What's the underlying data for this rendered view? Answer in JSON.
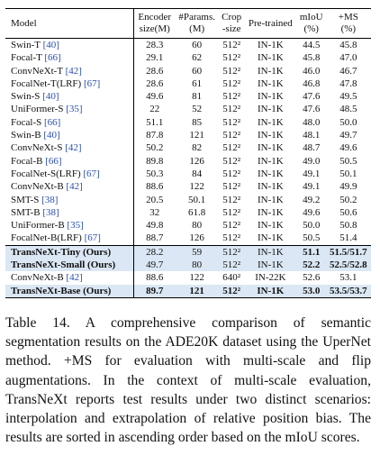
{
  "table": {
    "header": [
      [
        "Model"
      ],
      [
        "Encoder",
        "size(M)"
      ],
      [
        "#Params.",
        "(M)"
      ],
      [
        "Crop",
        "-size"
      ],
      [
        "Pre-trained"
      ],
      [
        "mIoU",
        "(%)"
      ],
      [
        "+MS",
        "(%)"
      ]
    ],
    "rows": [
      {
        "model": "Swin-T",
        "ref": "[40]",
        "cells": [
          "28.3",
          "60",
          "512²",
          "IN-1K",
          "44.5",
          "45.8"
        ]
      },
      {
        "model": "Focal-T",
        "ref": "[66]",
        "cells": [
          "29.1",
          "62",
          "512²",
          "IN-1K",
          "45.8",
          "47.0"
        ]
      },
      {
        "model": "ConvNeXt-T",
        "ref": "[42]",
        "cells": [
          "28.6",
          "60",
          "512²",
          "IN-1K",
          "46.0",
          "46.7"
        ]
      },
      {
        "model": "FocalNet-T(LRF)",
        "ref": "[67]",
        "cells": [
          "28.6",
          "61",
          "512²",
          "IN-1K",
          "46.8",
          "47.8"
        ]
      },
      {
        "model": "Swin-S",
        "ref": "[40]",
        "cells": [
          "49.6",
          "81",
          "512²",
          "IN-1K",
          "47.6",
          "49.5"
        ]
      },
      {
        "model": "UniFormer-S",
        "ref": "[35]",
        "cells": [
          "22",
          "52",
          "512²",
          "IN-1K",
          "47.6",
          "48.5"
        ]
      },
      {
        "model": "Focal-S",
        "ref": "[66]",
        "cells": [
          "51.1",
          "85",
          "512²",
          "IN-1K",
          "48.0",
          "50.0"
        ]
      },
      {
        "model": "Swin-B",
        "ref": "[40]",
        "cells": [
          "87.8",
          "121",
          "512²",
          "IN-1K",
          "48.1",
          "49.7"
        ]
      },
      {
        "model": "ConvNeXt-S",
        "ref": "[42]",
        "cells": [
          "50.2",
          "82",
          "512²",
          "IN-1K",
          "48.7",
          "49.6"
        ]
      },
      {
        "model": "Focal-B",
        "ref": "[66]",
        "cells": [
          "89.8",
          "126",
          "512²",
          "IN-1K",
          "49.0",
          "50.5"
        ]
      },
      {
        "model": "FocalNet-S(LRF)",
        "ref": "[67]",
        "cells": [
          "50.3",
          "84",
          "512²",
          "IN-1K",
          "49.1",
          "50.1"
        ]
      },
      {
        "model": "ConvNeXt-B",
        "ref": "[42]",
        "cells": [
          "88.6",
          "122",
          "512²",
          "IN-1K",
          "49.1",
          "49.9"
        ]
      },
      {
        "model": "SMT-S",
        "ref": "[38]",
        "cells": [
          "20.5",
          "50.1",
          "512²",
          "IN-1K",
          "49.2",
          "50.2"
        ]
      },
      {
        "model": "SMT-B",
        "ref": "[38]",
        "cells": [
          "32",
          "61.8",
          "512²",
          "IN-1K",
          "49.6",
          "50.6"
        ]
      },
      {
        "model": "UniFormer-B",
        "ref": "[35]",
        "cells": [
          "49.8",
          "80",
          "512²",
          "IN-1K",
          "50.0",
          "50.8"
        ]
      },
      {
        "model": "FocalNet-B(LRF)",
        "ref": "[67]",
        "cells": [
          "88.7",
          "126",
          "512²",
          "IN-1K",
          "50.5",
          "51.4"
        ]
      },
      {
        "model": "TransNeXt-Tiny (Ours)",
        "cells": [
          "28.2",
          "59",
          "512²",
          "IN-1K",
          "51.1",
          "51.5/51.7"
        ],
        "highlight": true
      },
      {
        "model": "TransNeXt-Small (Ours)",
        "cells": [
          "49.7",
          "80",
          "512²",
          "IN-1K",
          "52.2",
          "52.5/52.8"
        ],
        "highlight": true
      },
      {
        "model": "ConvNeXt-B",
        "ref": "[42]",
        "cells": [
          "88.6",
          "122",
          "640²",
          "IN-22K",
          "52.6",
          "53.1"
        ]
      },
      {
        "model": "TransNeXt-Base (Ours)",
        "cells": [
          "89.7",
          "121",
          "512²",
          "IN-1K",
          "53.0",
          "53.5/53.7"
        ],
        "highlight": true
      }
    ]
  },
  "caption": "Table 14. A comprehensive comparison of semantic segmentation results on the ADE20K dataset using the UperNet method. +MS for evaluation with multi-scale and flip augmentations. In the context of multi-scale evaluation, TransNeXt reports test results under two distinct scenarios: interpolation and extrapolation of relative position bias. The results are sorted in ascending order based on the mIoU scores."
}
